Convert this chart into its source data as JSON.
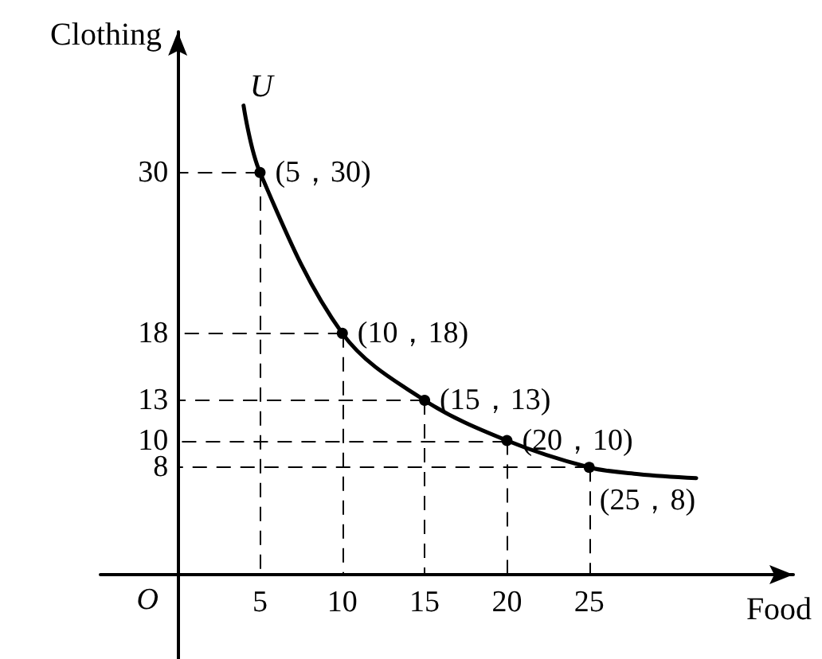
{
  "chart_data": {
    "type": "line",
    "xlabel": "Food",
    "ylabel": "Clothing",
    "xlim": [
      -4.7,
      37.4
    ],
    "ylim": [
      -6.3,
      40.5
    ],
    "xticks": [
      5,
      10,
      15,
      20,
      25
    ],
    "yticks": [
      8,
      10,
      13,
      18,
      30
    ],
    "grid": false,
    "legend": false,
    "series": [
      {
        "name": "U",
        "color": "#000000",
        "marker": "none",
        "line_style": "solid",
        "x": [
          4,
          5,
          10,
          15,
          20,
          25,
          28,
          31.5
        ],
        "values": [
          35,
          30,
          18,
          13,
          10,
          8,
          7.5,
          7.2
        ]
      },
      {
        "type": "scatter",
        "color": "#000000",
        "marker": "circle",
        "line_style": "dashed",
        "x": [
          5,
          10,
          15,
          20,
          25
        ],
        "values": [
          30,
          18,
          13,
          10,
          8
        ],
        "value_labels": [
          "(5，30)",
          "(10，18)",
          "(15，13)",
          "(20，10)",
          "(25，8)"
        ]
      }
    ],
    "annotations": [
      "O"
    ]
  }
}
